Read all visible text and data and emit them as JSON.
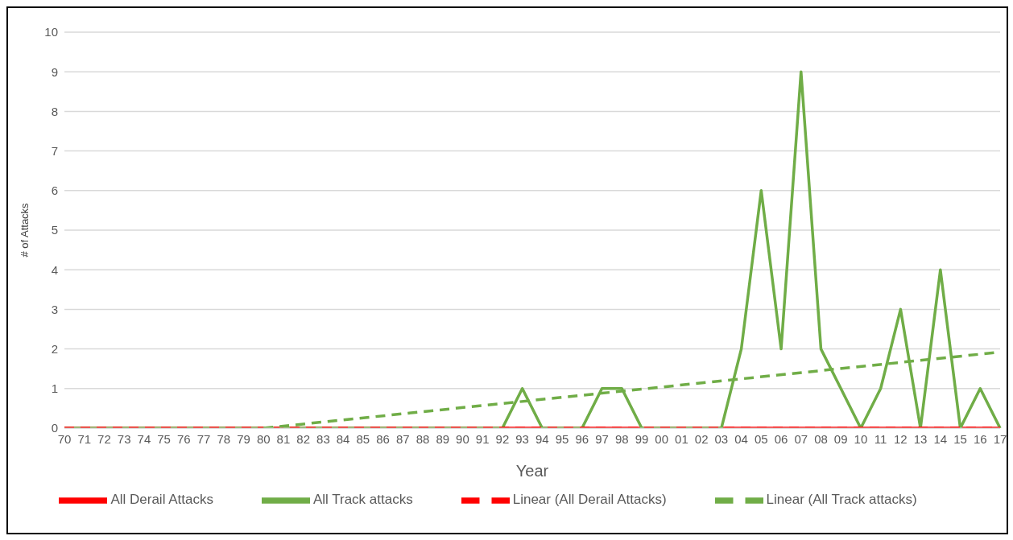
{
  "chart_data": {
    "type": "line",
    "xlabel": "Year",
    "ylabel": "# of Attacks",
    "categories": [
      "70",
      "71",
      "72",
      "73",
      "74",
      "75",
      "76",
      "77",
      "78",
      "79",
      "80",
      "81",
      "82",
      "83",
      "84",
      "85",
      "86",
      "87",
      "88",
      "89",
      "90",
      "91",
      "92",
      "93",
      "94",
      "95",
      "96",
      "97",
      "98",
      "99",
      "00",
      "01",
      "02",
      "03",
      "04",
      "05",
      "06",
      "07",
      "08",
      "09",
      "10",
      "11",
      "12",
      "13",
      "14",
      "15",
      "16",
      "17"
    ],
    "series": [
      {
        "name": "All Derail Attacks",
        "color": "#ff0000",
        "line_style": "solid",
        "values": [
          0,
          0,
          0,
          0,
          0,
          0,
          0,
          0,
          0,
          0,
          0,
          0,
          0,
          0,
          0,
          0,
          0,
          0,
          0,
          0,
          0,
          0,
          0,
          0,
          0,
          0,
          0,
          0,
          0,
          0,
          0,
          0,
          0,
          0,
          0,
          0,
          0,
          0,
          0,
          0,
          0,
          0,
          0,
          0,
          0,
          0,
          0,
          0
        ]
      },
      {
        "name": "All Track attacks",
        "color": "#70ad47",
        "line_style": "solid",
        "values": [
          0,
          0,
          0,
          0,
          0,
          0,
          0,
          0,
          0,
          0,
          0,
          0,
          0,
          0,
          0,
          0,
          0,
          0,
          0,
          0,
          0,
          0,
          0,
          1,
          0,
          0,
          0,
          1,
          1,
          0,
          0,
          0,
          0,
          0,
          2,
          6,
          2,
          9,
          2,
          1,
          0,
          1,
          3,
          0,
          4,
          0,
          1,
          0
        ]
      },
      {
        "name": "Linear (All Derail Attacks)",
        "color": "#ff0000",
        "line_style": "dashed",
        "values": [
          0,
          null,
          null,
          null,
          null,
          null,
          null,
          null,
          null,
          null,
          null,
          null,
          null,
          null,
          null,
          null,
          null,
          null,
          null,
          null,
          null,
          null,
          null,
          null,
          null,
          null,
          null,
          null,
          null,
          null,
          null,
          null,
          null,
          null,
          null,
          null,
          null,
          null,
          null,
          null,
          null,
          null,
          null,
          null,
          null,
          null,
          null,
          0
        ]
      },
      {
        "name": "Linear (All Track attacks)",
        "color": "#70ad47",
        "line_style": "dashed",
        "values": [
          null,
          null,
          null,
          null,
          null,
          null,
          null,
          null,
          null,
          null,
          0,
          null,
          null,
          null,
          null,
          null,
          null,
          null,
          null,
          null,
          null,
          null,
          null,
          null,
          null,
          null,
          null,
          null,
          null,
          null,
          null,
          null,
          null,
          null,
          null,
          null,
          null,
          null,
          null,
          null,
          null,
          null,
          null,
          null,
          null,
          null,
          null,
          1.92
        ]
      }
    ],
    "ylim": [
      0,
      10
    ],
    "yticks": [
      0,
      1,
      2,
      3,
      4,
      5,
      6,
      7,
      8,
      9,
      10
    ],
    "grid": "y",
    "legend": "bottom",
    "marker": "none"
  }
}
